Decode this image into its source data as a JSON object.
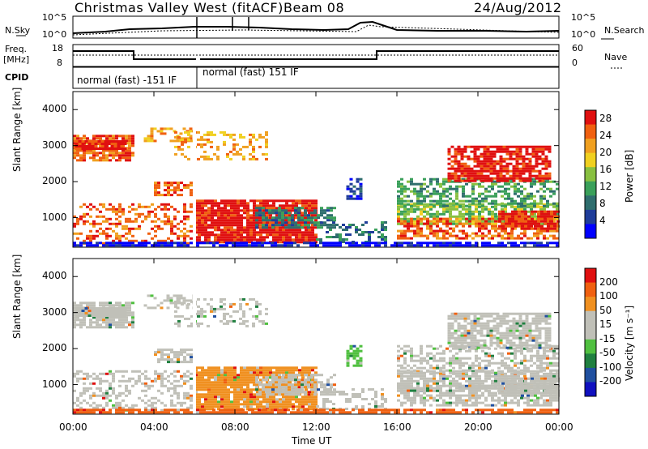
{
  "header": {
    "station": "Christmas Valley West (fitACF)",
    "beam": "Beam 08",
    "date": "24/Aug/2012"
  },
  "top_panels": {
    "nsky_label": "N.Sky",
    "nsearch_label": "N.Search",
    "freq_label": "Freq.",
    "freq_unit": "[MHz]",
    "nave_label": "Nave",
    "cpid_label": "CPID",
    "noise_ticks": [
      "10^5",
      "10^0"
    ],
    "freq_ticks": [
      "18",
      "8"
    ],
    "nave_ticks": [
      "60",
      "0"
    ],
    "cpid_segments": [
      "normal (fast) -151 IF",
      "normal (fast) 151 IF"
    ]
  },
  "chart_data": [
    {
      "type": "heatmap",
      "panel": "power",
      "ylabel": "Slant Range [km]",
      "xlabel": "Time UT",
      "x_ticks": [
        "00:00",
        "04:00",
        "08:00",
        "12:00",
        "16:00",
        "20:00",
        "00:00"
      ],
      "y_ticks": [
        1000,
        2000,
        3000,
        4000
      ],
      "ylim": [
        180,
        4500
      ],
      "colorbar": {
        "label": "Power [dB]",
        "ticks": [
          4,
          8,
          12,
          16,
          20,
          24,
          28
        ],
        "range": [
          0,
          30
        ]
      }
    },
    {
      "type": "heatmap",
      "panel": "velocity",
      "ylabel": "Slant Range [km]",
      "xlabel": "Time UT",
      "x_ticks": [
        "00:00",
        "04:00",
        "08:00",
        "12:00",
        "16:00",
        "20:00",
        "00:00"
      ],
      "y_ticks": [
        1000,
        2000,
        3000,
        4000
      ],
      "ylim": [
        180,
        4500
      ],
      "colorbar": {
        "label": "Velocity [m s⁻¹]",
        "ticks": [
          200,
          100,
          50,
          15,
          -15,
          -50,
          -100,
          -200
        ]
      }
    }
  ],
  "colors": {
    "power_scale": [
      "#0000ff",
      "#1f3d9a",
      "#2f6e6e",
      "#3aa05a",
      "#88c040",
      "#f0d020",
      "#f0a020",
      "#f06010",
      "#e01010"
    ],
    "velocity_scale": [
      "#1010c0",
      "#2050a0",
      "#208040",
      "#50c040",
      "#c0c0b8",
      "#c0c0b8",
      "#f09020",
      "#f06010",
      "#e01010"
    ]
  },
  "footer": {
    "xlabel": "Time UT"
  }
}
